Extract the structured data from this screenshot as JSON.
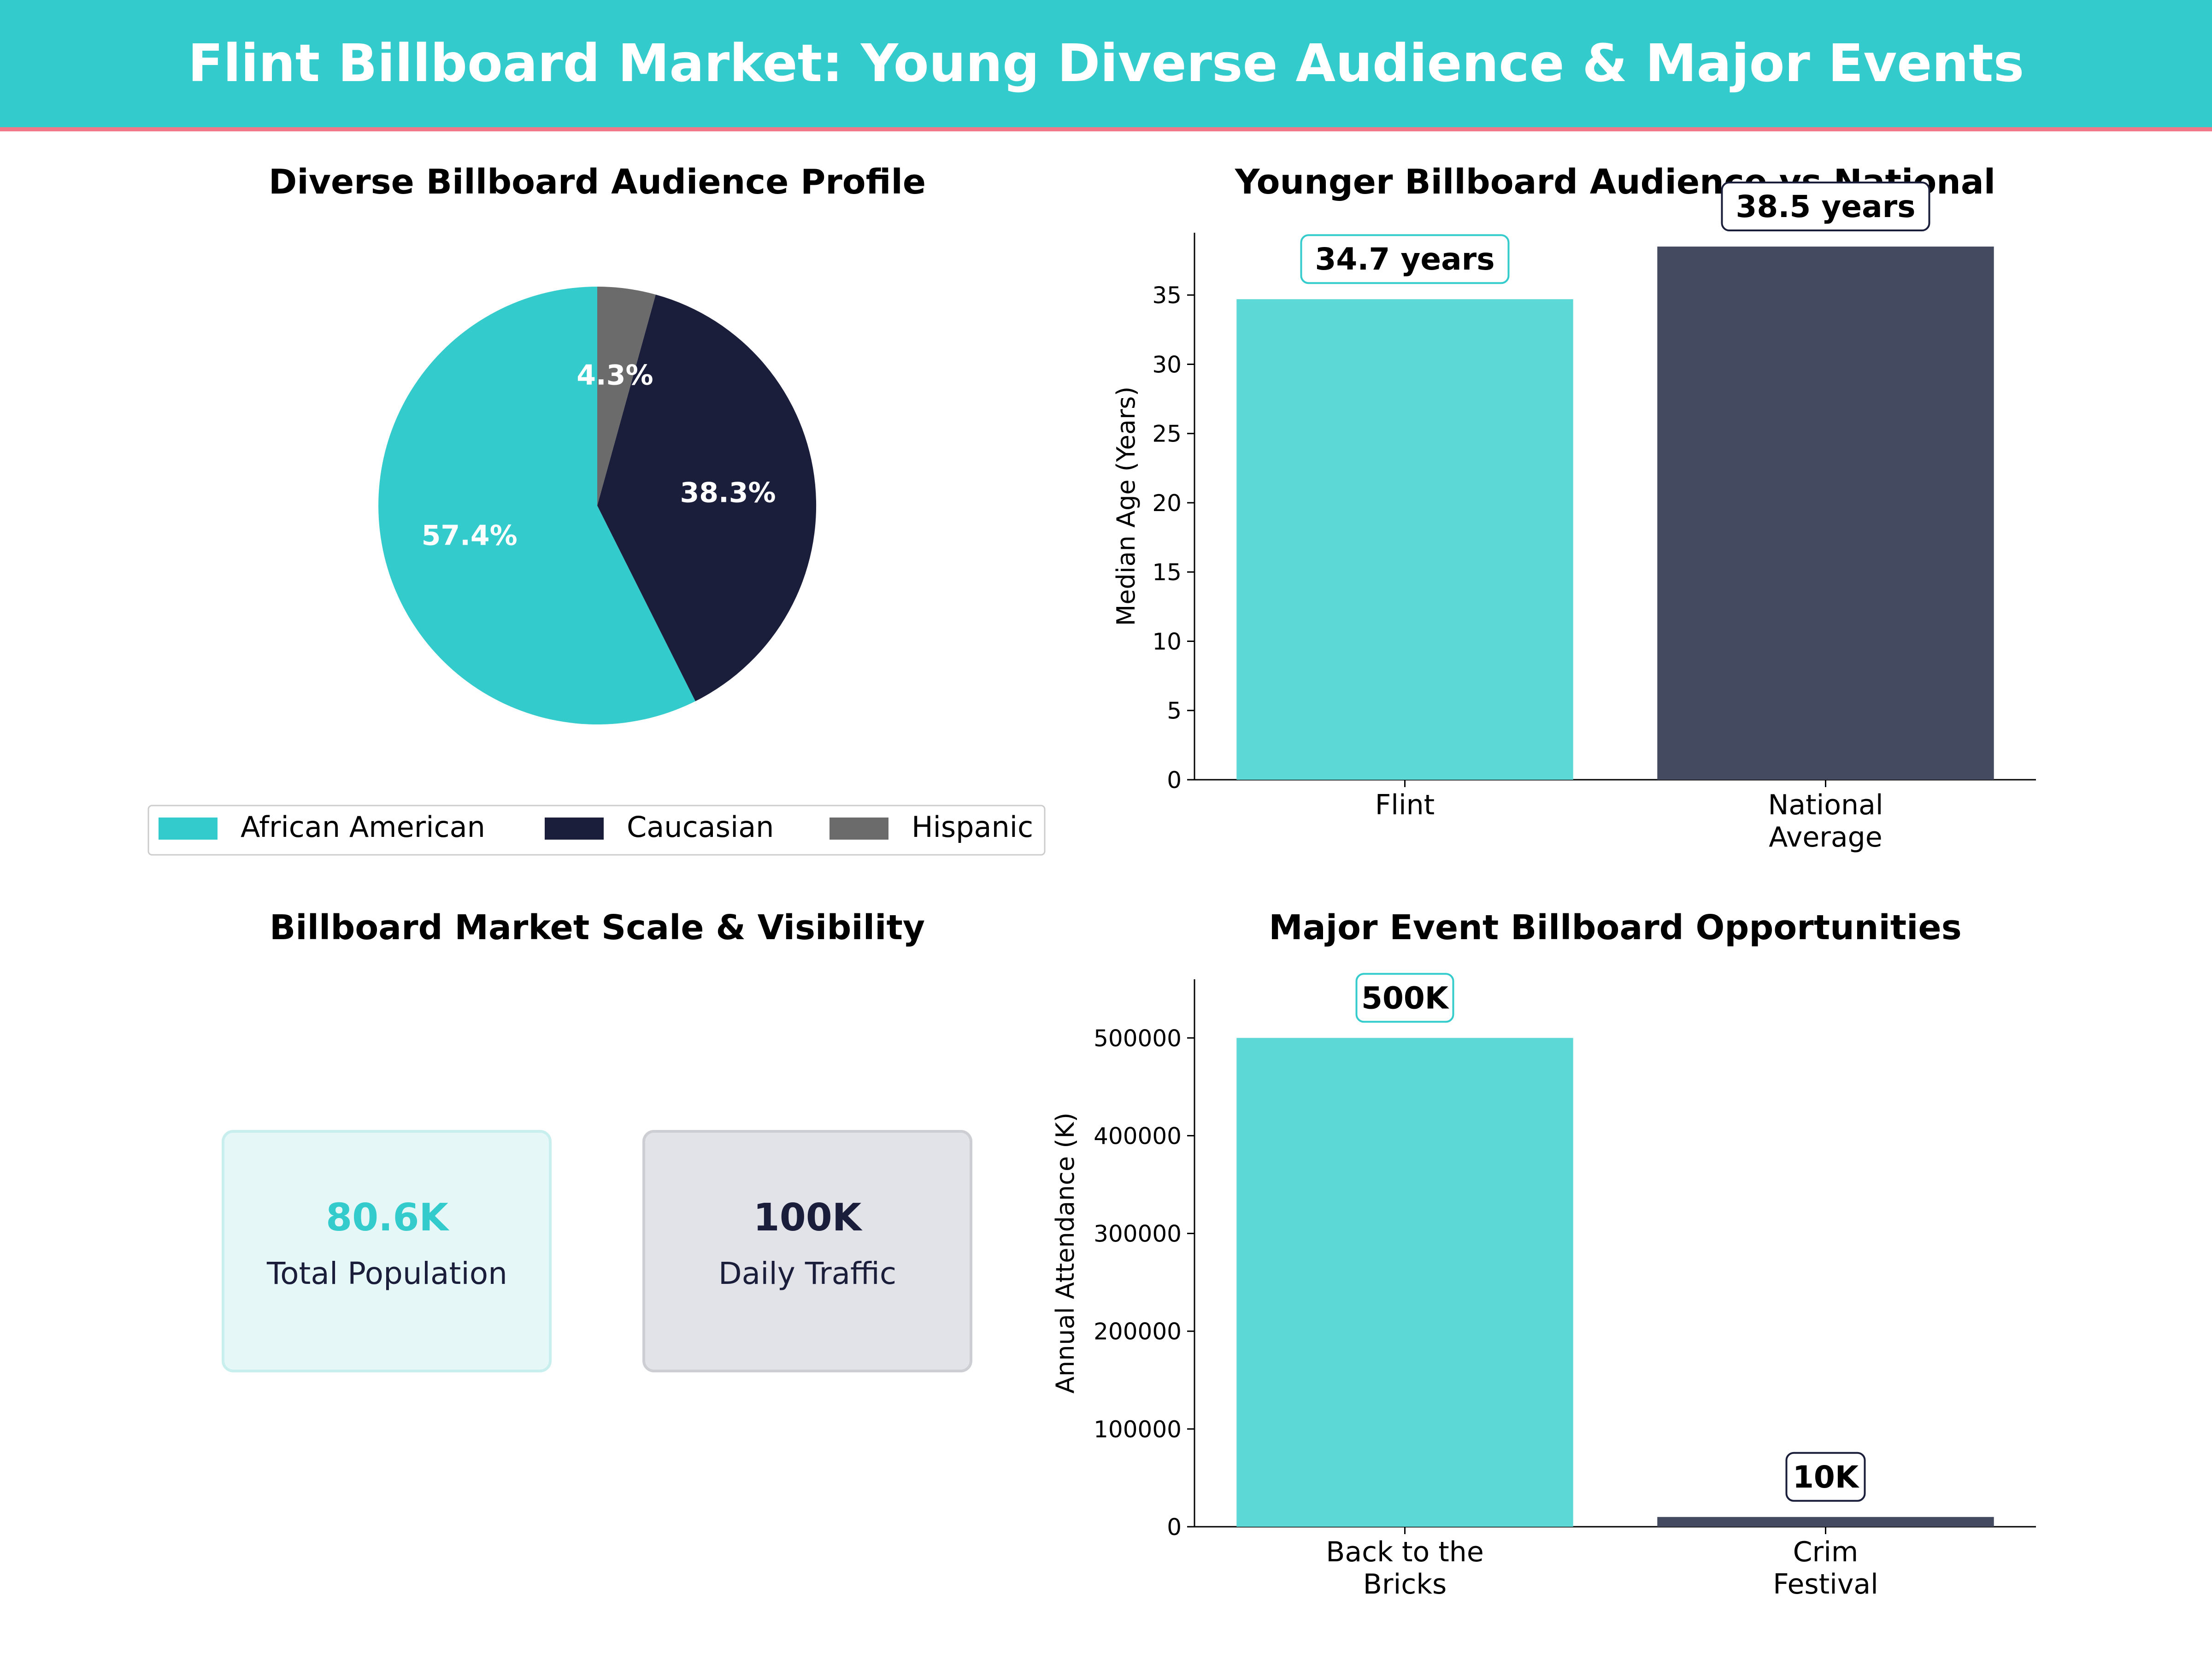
{
  "header": {
    "title": "Flint Billboard Market: Young Diverse Audience & Major Events"
  },
  "colors": {
    "accent": "#34cbcc",
    "dark": "#1b1e3a",
    "gray": "#6b6b6b",
    "barTeal": "#5cd8d6",
    "barDark": "#444a5f"
  },
  "chart_data": [
    {
      "type": "pie",
      "title": "Diverse Billboard Audience Profile",
      "categories": [
        "African American",
        "Caucasian",
        "Hispanic"
      ],
      "values": [
        57.4,
        38.3,
        4.3
      ],
      "value_labels": [
        "57.4%",
        "38.3%",
        "4.3%"
      ],
      "legend": "bottom"
    },
    {
      "type": "bar",
      "title": "Younger Billboard Audience vs National",
      "categories": [
        [
          "Flint"
        ],
        [
          "National",
          "Average"
        ]
      ],
      "values": [
        34.7,
        38.5
      ],
      "value_labels": [
        "34.7 years",
        "38.5 years"
      ],
      "ylabel": "Median Age (Years)",
      "ylim": [
        0,
        39.5
      ],
      "yticks": [
        0,
        5,
        10,
        15,
        20,
        25,
        30,
        35
      ]
    },
    {
      "type": "table",
      "title": "Billboard Market Scale & Visibility",
      "cards": [
        {
          "value": "80.6K",
          "label": "Total Population"
        },
        {
          "value": "100K",
          "label": "Daily Traffic"
        }
      ]
    },
    {
      "type": "bar",
      "title": "Major Event Billboard Opportunities",
      "categories": [
        [
          "Back to the",
          "Bricks"
        ],
        [
          "Crim",
          "Festival"
        ]
      ],
      "values": [
        500000,
        10000
      ],
      "value_labels": [
        "500K",
        "10K"
      ],
      "ylabel": "Annual Attendance (K)",
      "ylim": [
        0,
        560000
      ],
      "yticks": [
        0,
        100000,
        200000,
        300000,
        400000,
        500000
      ]
    }
  ]
}
